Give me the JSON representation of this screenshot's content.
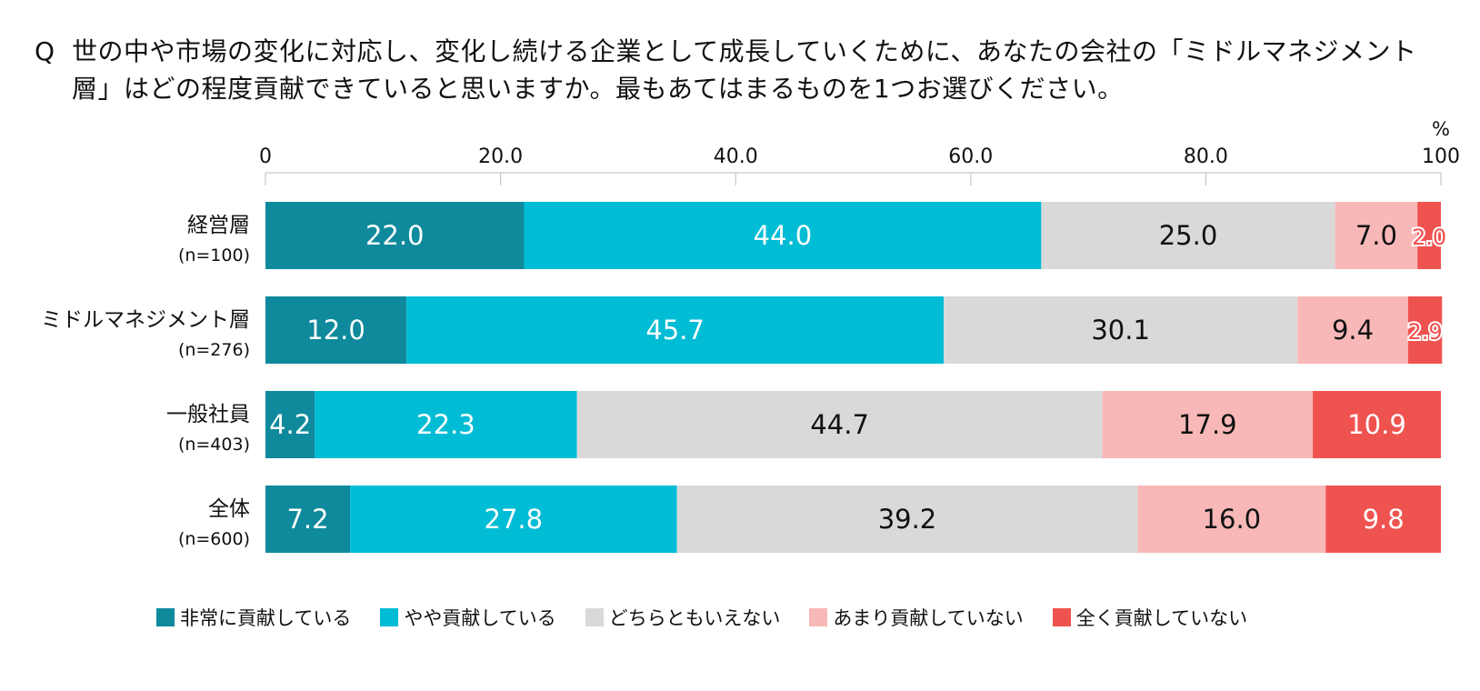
{
  "question": {
    "marker": "Q",
    "text": "世の中や市場の変化に対応し、変化し続ける企業として成長していくために、あなたの会社の「ミドルマネジメント層」はどの程度貢献できていると思いますか。最もあてはまるものを1つお選びください。"
  },
  "chart_data": {
    "type": "bar",
    "orientation": "horizontal",
    "stacked": true,
    "unit_label": "%",
    "xlim": [
      0,
      100
    ],
    "x_ticks": [
      "0",
      "20.0",
      "40.0",
      "60.0",
      "80.0",
      "100"
    ],
    "categories": [
      {
        "label": "経営層",
        "n": "(n=100)"
      },
      {
        "label": "ミドルマネジメント層",
        "n": "(n=276)"
      },
      {
        "label": "一般社員",
        "n": "(n=403)"
      },
      {
        "label": "全体",
        "n": "(n=600)"
      }
    ],
    "series": [
      {
        "name": "非常に貢献している",
        "color": "#0e8a9c",
        "label_color": "#ffffff",
        "values": [
          22.0,
          12.0,
          4.2,
          7.2
        ]
      },
      {
        "name": "やや貢献している",
        "color": "#00bcd4",
        "label_color": "#ffffff",
        "values": [
          44.0,
          45.7,
          22.3,
          27.8
        ]
      },
      {
        "name": "どちらともいえない",
        "color": "#d9d9d9",
        "label_color": "#111111",
        "values": [
          25.0,
          30.1,
          44.7,
          39.2
        ]
      },
      {
        "name": "あまり貢献していない",
        "color": "#f8b8b8",
        "label_color": "#111111",
        "values": [
          7.0,
          9.4,
          17.9,
          16.0
        ]
      },
      {
        "name": "全く貢献していない",
        "color": "#ef5350",
        "label_color": "#ffffff",
        "values": [
          2.0,
          2.9,
          10.9,
          9.8
        ]
      }
    ]
  }
}
